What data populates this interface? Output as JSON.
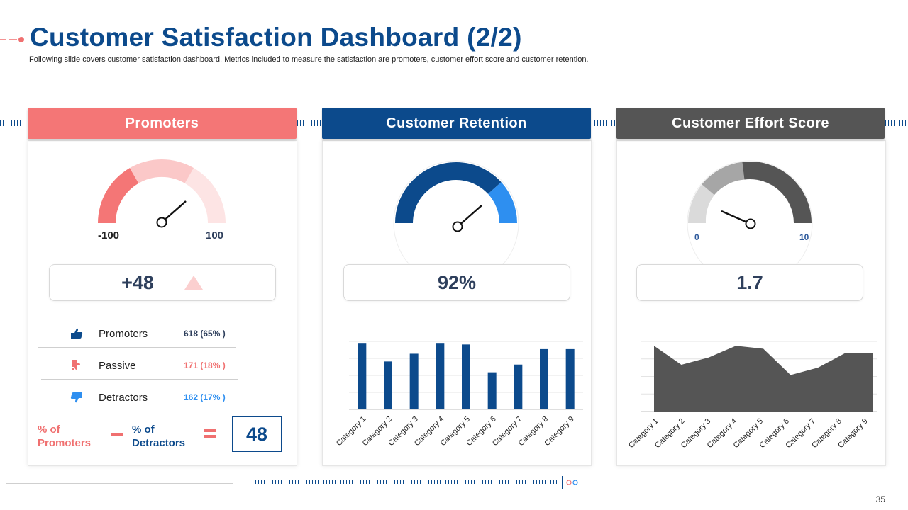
{
  "page": {
    "title": "Customer Satisfaction Dashboard (2/2)",
    "subtitle": "Following slide covers customer satisfaction dashboard. Metrics included to measure the satisfaction are promoters, customer effort score and customer retention.",
    "page_number": "35"
  },
  "colors": {
    "brand_blue": "#0c4a8c",
    "accent_coral": "#f07070",
    "light_blue": "#2e8ff0",
    "dark_gray": "#555555"
  },
  "promoters": {
    "header": "Promoters",
    "gauge_min": "-100",
    "gauge_max": "100",
    "value": "+48",
    "trend_icon": "triangle-up-icon",
    "rows": [
      {
        "icon": "thumbs-up-icon",
        "label": "Promoters",
        "value": "618 (65% )"
      },
      {
        "icon": "thumbs-sideways-icon",
        "label": "Passive",
        "value": "171 (18% )"
      },
      {
        "icon": "thumbs-down-icon",
        "label": "Detractors",
        "value": "162 (17% )"
      }
    ],
    "formula": {
      "left_label": "% of\nPromoters",
      "right_label": "% of\nDetractors",
      "result": "48"
    }
  },
  "retention": {
    "header": "Customer Retention",
    "value": "92%",
    "gauge_fraction": 0.92
  },
  "effort": {
    "header": "Customer Effort Score",
    "gauge_min": "0",
    "gauge_max": "10",
    "value": "1.7"
  },
  "chart_data": [
    {
      "type": "bar",
      "title": "",
      "categories": [
        "Category 1",
        "Category 2",
        "Category 3",
        "Category 4",
        "Category 5",
        "Category 6",
        "Category 7",
        "Category 8",
        "Category 9"
      ],
      "values": [
        4.3,
        3.1,
        3.6,
        4.3,
        4.2,
        2.4,
        2.9,
        3.9,
        3.9
      ],
      "ylim": [
        0,
        4.4
      ],
      "xlabel": "",
      "ylabel": "",
      "grid": true
    },
    {
      "type": "area",
      "title": "",
      "categories": [
        "Category 1",
        "Category 2",
        "Category 3",
        "Category 4",
        "Category 5",
        "Category 6",
        "Category 7",
        "Category 8",
        "Category 9"
      ],
      "values": [
        4.5,
        3.2,
        3.7,
        4.5,
        4.3,
        2.5,
        3.0,
        4.0,
        4.0
      ],
      "ylim": [
        0,
        4.8
      ],
      "xlabel": "",
      "ylabel": "",
      "grid": true
    }
  ]
}
